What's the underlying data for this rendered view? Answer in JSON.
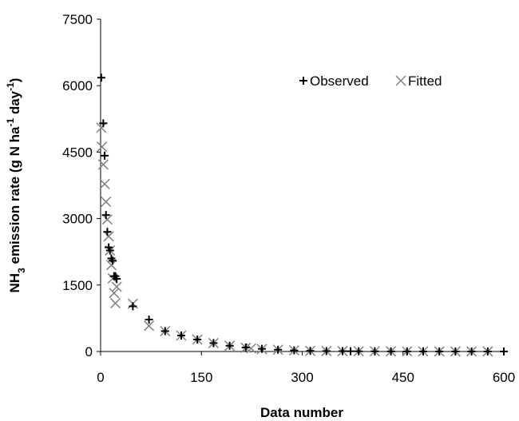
{
  "chart_data": {
    "type": "scatter",
    "title": "",
    "xlabel": "Data number",
    "ylabel_parts": {
      "pre": "NH",
      "sub": "3",
      "mid": " emission rate (g N ha",
      "sup1": "-1",
      "mid2": " day",
      "sup2": "-1",
      "post": ")"
    },
    "xlim": [
      0,
      600
    ],
    "ylim": [
      0,
      7500
    ],
    "xticks": [
      "0",
      "150",
      "300",
      "450",
      "600"
    ],
    "yticks": [
      "0",
      "1500",
      "3000",
      "4500",
      "6000",
      "7500"
    ],
    "grid": false,
    "legend_position": "top-right",
    "series": [
      {
        "name": "Observed",
        "marker": "plus",
        "color": "#000000",
        "points": [
          [
            1,
            6180
          ],
          [
            4,
            5150
          ],
          [
            6,
            4420
          ],
          [
            8,
            3080
          ],
          [
            10,
            2700
          ],
          [
            12,
            2350
          ],
          [
            14,
            2280
          ],
          [
            16,
            2100
          ],
          [
            18,
            2050
          ],
          [
            20,
            1700
          ],
          [
            22,
            1700
          ],
          [
            24,
            1640
          ],
          [
            48,
            1020
          ],
          [
            72,
            720
          ],
          [
            96,
            460
          ],
          [
            120,
            360
          ],
          [
            144,
            270
          ],
          [
            168,
            190
          ],
          [
            192,
            130
          ],
          [
            216,
            90
          ],
          [
            240,
            60
          ],
          [
            264,
            40
          ],
          [
            288,
            25
          ],
          [
            312,
            15
          ],
          [
            336,
            10
          ],
          [
            360,
            8
          ],
          [
            372,
            6
          ],
          [
            384,
            5
          ],
          [
            408,
            4
          ],
          [
            432,
            3
          ],
          [
            456,
            2
          ],
          [
            480,
            2
          ],
          [
            504,
            1
          ],
          [
            528,
            1
          ],
          [
            552,
            1
          ],
          [
            576,
            1
          ],
          [
            600,
            1
          ]
        ]
      },
      {
        "name": "Fitted",
        "marker": "x",
        "color": "#808080",
        "points": [
          [
            1,
            5050
          ],
          [
            2,
            4620
          ],
          [
            4,
            4220
          ],
          [
            6,
            3780
          ],
          [
            8,
            3380
          ],
          [
            10,
            2980
          ],
          [
            12,
            2600
          ],
          [
            14,
            2280
          ],
          [
            16,
            1950
          ],
          [
            18,
            1650
          ],
          [
            20,
            1320
          ],
          [
            22,
            1090
          ],
          [
            24,
            1460
          ],
          [
            48,
            1080
          ],
          [
            72,
            580
          ],
          [
            96,
            460
          ],
          [
            120,
            360
          ],
          [
            144,
            270
          ],
          [
            168,
            190
          ],
          [
            192,
            130
          ],
          [
            216,
            85
          ],
          [
            224,
            70
          ],
          [
            240,
            55
          ],
          [
            264,
            40
          ],
          [
            288,
            25
          ],
          [
            312,
            15
          ],
          [
            336,
            10
          ],
          [
            360,
            8
          ],
          [
            384,
            5
          ],
          [
            408,
            4
          ],
          [
            432,
            3
          ],
          [
            456,
            2
          ],
          [
            480,
            2
          ],
          [
            504,
            1
          ],
          [
            528,
            1
          ],
          [
            552,
            1
          ],
          [
            576,
            1
          ]
        ]
      }
    ]
  }
}
